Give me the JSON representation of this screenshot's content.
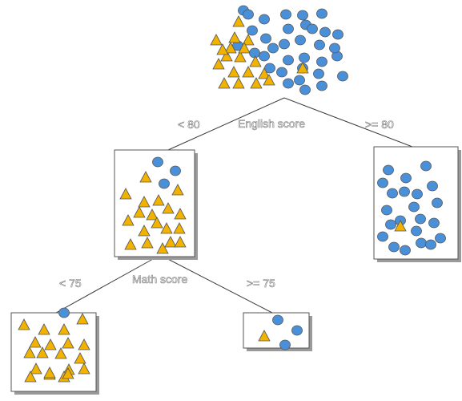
{
  "root": {
    "circles": 34,
    "triangles": 19
  },
  "split1": {
    "feature": "English score",
    "left_label": "< 80",
    "right_label": ">= 80"
  },
  "split2": {
    "feature": "Math score",
    "left_label": "< 75",
    "right_label": ">= 75"
  },
  "colors": {
    "circle": "#4a90d9",
    "triangle": "#f2b200",
    "outline": "#555555"
  }
}
